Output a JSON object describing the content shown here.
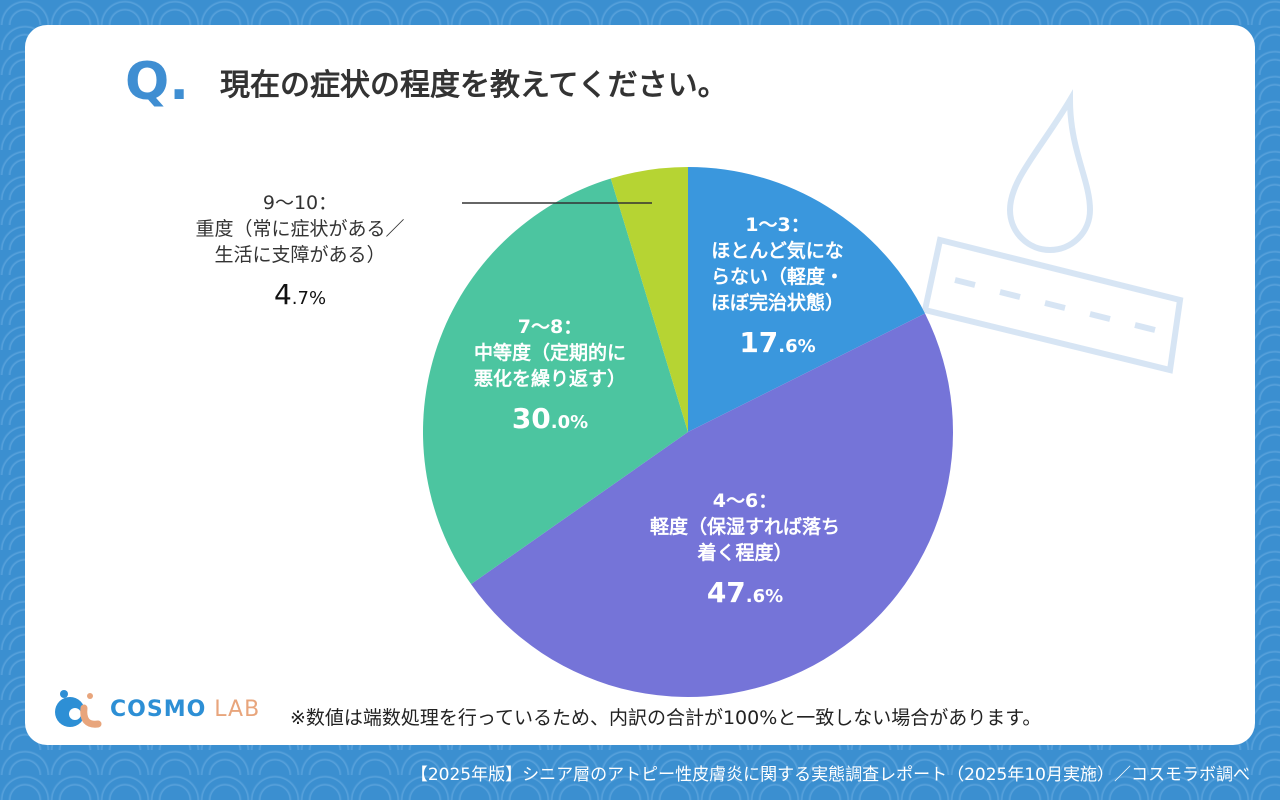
{
  "title": {
    "q": "Q",
    "dot": ".",
    "text": "現在の症状の程度を教えてください。"
  },
  "chart_data": {
    "type": "pie",
    "title": "現在の症状の程度を教えてください。",
    "start": "top",
    "direction": "clockwise",
    "slices": [
      {
        "line1": "1〜3：",
        "line2": "ほとんど気にな",
        "line3": "らない（軽度・",
        "line4": "ほぼ完治状態）",
        "value": 17.6,
        "int": "17",
        "dec": ".6%",
        "color": "#3a97dd"
      },
      {
        "line1": "4〜6：",
        "line2": "軽度（保湿すれば落ち",
        "line3": "着く程度）",
        "value": 47.6,
        "int": "47",
        "dec": ".6%",
        "color": "#7574d8"
      },
      {
        "line1": "7〜8：",
        "line2": "中等度（定期的に",
        "line3": "悪化を繰り返す）",
        "value": 30.0,
        "int": "30",
        "dec": ".0%",
        "color": "#4cc5a0"
      },
      {
        "line1": "9〜10：",
        "line2": "重度（常に症状がある／",
        "line3": "生活に支障がある）",
        "value": 4.7,
        "int": "4",
        "dec": ".7%",
        "color": "#b6d433"
      }
    ]
  },
  "note": "※数値は端数処理を行っているため、内訳の合計が100%と一致しない場合があります。",
  "logo": {
    "a": "COSMO",
    "b": "LAB"
  },
  "footer": "【2025年版】シニア層のアトピー性皮膚炎に関する実態調査レポート（2025年10月実施）／コスモラボ調べ"
}
